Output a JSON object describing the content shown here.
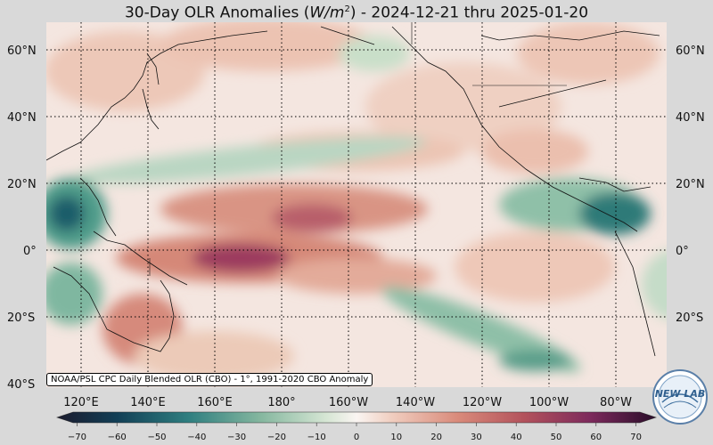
{
  "title": {
    "prefix": "30-Day OLR Anomalies (",
    "units": "W/m",
    "units_exp": "2",
    "suffix": ") - 2024-12-21 thru 2025-01-20"
  },
  "lat_labels": [
    "60°N",
    "40°N",
    "20°N",
    "0°",
    "20°S",
    "40°S"
  ],
  "lon_labels": [
    "120°E",
    "140°E",
    "160°E",
    "180°",
    "160°W",
    "140°W",
    "120°W",
    "100°W",
    "80°W"
  ],
  "credit": "NOAA/PSL CPC Daily Blended OLR (CBO) - 1°, 1991-2020 CBO Anomaly",
  "logo_text": "NEW LAB",
  "colorbar": {
    "ticks": [
      "−70",
      "−60",
      "−50",
      "−40",
      "−30",
      "−20",
      "−10",
      "0",
      "10",
      "20",
      "30",
      "40",
      "50",
      "60",
      "70"
    ],
    "min": -75,
    "max": 75
  },
  "colors": {
    "positive_strong": "#5a1d4f",
    "positive_mid": "#c05a5a",
    "positive_light": "#eec4b4",
    "neutral": "#f7f1ee",
    "negative_light": "#cfe0cc",
    "negative_mid": "#5fa08c",
    "negative_strong": "#0f3f55"
  }
}
